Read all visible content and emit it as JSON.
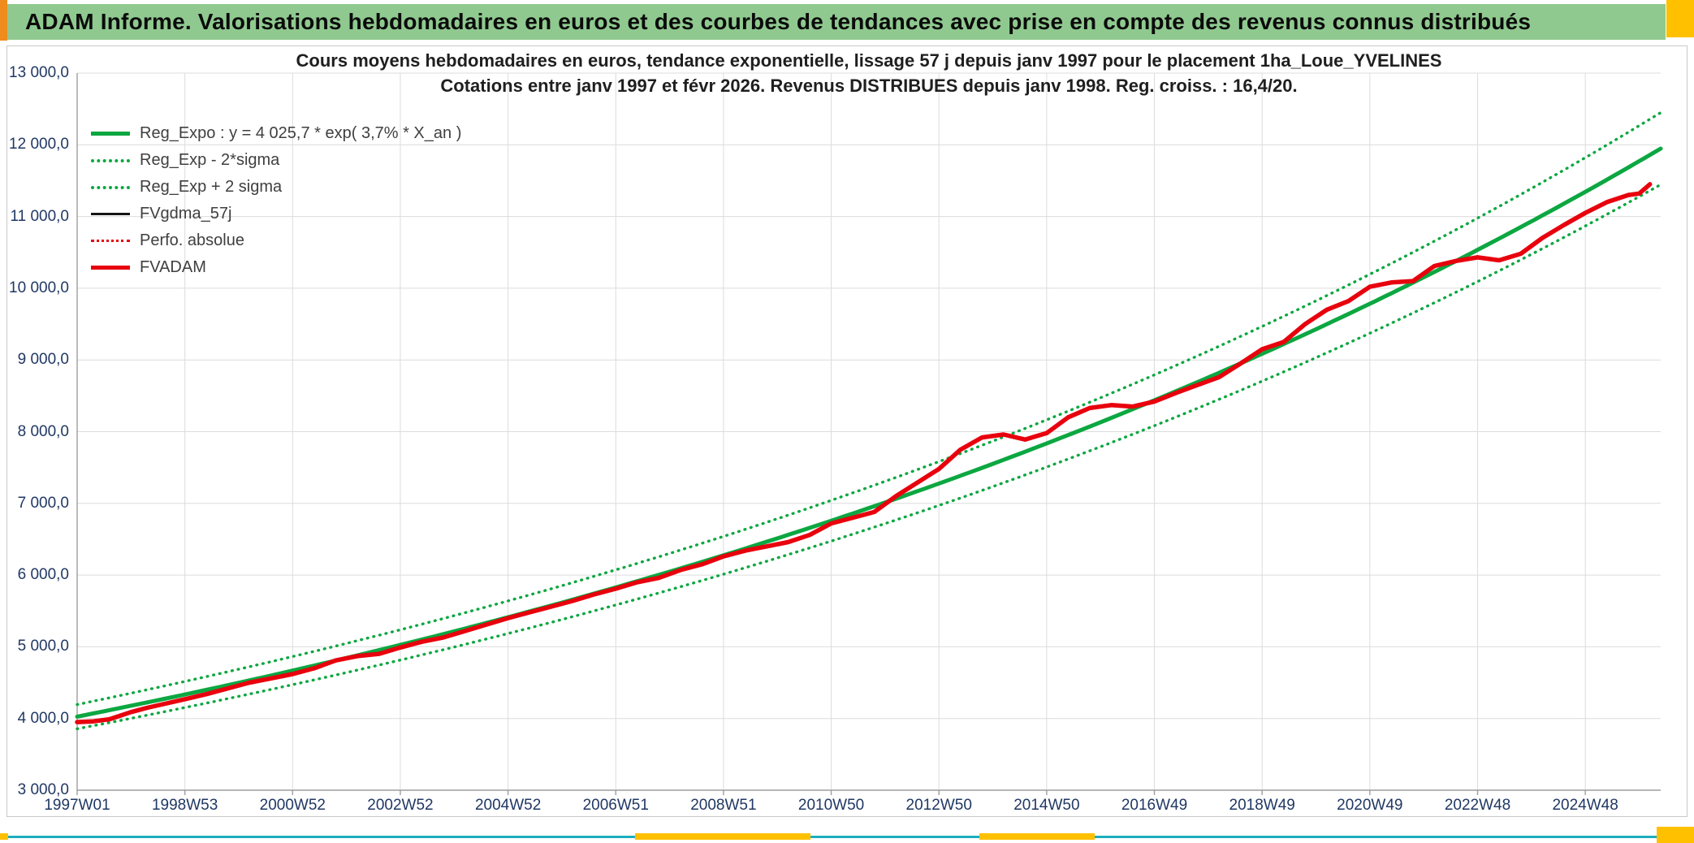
{
  "header": {
    "title": "ADAM Informe. Valorisations hebdomadaires en euros et des courbes de tendances avec prise en compte des revenus connus distribués"
  },
  "chart_data": {
    "type": "line",
    "title_line1": "Cours moyens hebdomadaires en euros, tendance exponentielle, lissage 57 j depuis janv 1997 pour le placement 1ha_Loue_YVELINES",
    "title_line2": "Cotations entre janv 1997 et févr 2026. Revenus DISTRIBUES depuis janv 1998. Reg. croiss. : 16,4/20.",
    "ylim": [
      3000,
      13000
    ],
    "y_tick_values": [
      13000,
      12000,
      11000,
      10000,
      9000,
      8000,
      7000,
      6000,
      5000,
      4000,
      3000
    ],
    "y_tick_labels": [
      "13 000,0",
      "12 000,0",
      "11 000,0",
      "10 000,0",
      "9 000,0",
      "8 000,0",
      "7 000,0",
      "6 000,0",
      "5 000,0",
      "4 000,0",
      "3 000,0"
    ],
    "x_tick_years": [
      0,
      2,
      4,
      6,
      8,
      10,
      12,
      14,
      16,
      18,
      20,
      22,
      24,
      26,
      28
    ],
    "x_tick_labels": [
      "1997W01",
      "1998W53",
      "2000W52",
      "2002W52",
      "2004W52",
      "2006W51",
      "2008W51",
      "2010W50",
      "2012W50",
      "2014W50",
      "2016W49",
      "2018W49",
      "2020W49",
      "2022W48",
      "2024W48"
    ],
    "x_range_years": [
      0,
      29.4
    ],
    "grid": true,
    "legend_position": "top-left-inside",
    "regression": {
      "a": 4025.7,
      "rate_pct_per_year": 3.7,
      "label": "Reg_Expo : y = 4 025,7 * exp( 3,7% * X_an )"
    },
    "sigma_band_pct": 4.2,
    "legend": [
      {
        "label": "Reg_Expo : y = 4 025,7 * exp( 3,7% * X_an )",
        "color": "#0CA741",
        "style": "thick"
      },
      {
        "label": "Reg_Exp - 2*sigma",
        "color": "#0CA741",
        "style": "dots"
      },
      {
        "label": "Reg_Exp + 2 sigma",
        "color": "#0CA741",
        "style": "dots"
      },
      {
        "label": "FVgdma_57j",
        "color": "#141414",
        "style": "thin"
      },
      {
        "label": "Perfo. absolue",
        "color": "#E8000D",
        "style": "thin-dots"
      },
      {
        "label": "FVADAM",
        "color": "#E8000D",
        "style": "thick"
      }
    ],
    "series": {
      "fvadam": {
        "name": "FVADAM",
        "color": "#E8000D",
        "points": [
          [
            0.0,
            3950
          ],
          [
            0.3,
            3960
          ],
          [
            0.6,
            3990
          ],
          [
            1.0,
            4090
          ],
          [
            1.3,
            4150
          ],
          [
            1.6,
            4200
          ],
          [
            2.0,
            4270
          ],
          [
            2.4,
            4340
          ],
          [
            2.8,
            4420
          ],
          [
            3.2,
            4500
          ],
          [
            3.6,
            4560
          ],
          [
            4.0,
            4620
          ],
          [
            4.4,
            4700
          ],
          [
            4.8,
            4810
          ],
          [
            5.2,
            4870
          ],
          [
            5.6,
            4900
          ],
          [
            6.0,
            4990
          ],
          [
            6.4,
            5070
          ],
          [
            6.8,
            5130
          ],
          [
            7.2,
            5220
          ],
          [
            7.6,
            5310
          ],
          [
            8.0,
            5400
          ],
          [
            8.4,
            5480
          ],
          [
            8.8,
            5560
          ],
          [
            9.2,
            5640
          ],
          [
            9.6,
            5730
          ],
          [
            10.0,
            5810
          ],
          [
            10.4,
            5900
          ],
          [
            10.8,
            5960
          ],
          [
            11.2,
            6070
          ],
          [
            11.6,
            6150
          ],
          [
            12.0,
            6260
          ],
          [
            12.4,
            6340
          ],
          [
            12.8,
            6400
          ],
          [
            13.2,
            6460
          ],
          [
            13.6,
            6560
          ],
          [
            14.0,
            6720
          ],
          [
            14.4,
            6800
          ],
          [
            14.8,
            6880
          ],
          [
            15.2,
            7100
          ],
          [
            15.6,
            7290
          ],
          [
            16.0,
            7480
          ],
          [
            16.4,
            7750
          ],
          [
            16.8,
            7920
          ],
          [
            17.2,
            7960
          ],
          [
            17.6,
            7890
          ],
          [
            18.0,
            7980
          ],
          [
            18.4,
            8200
          ],
          [
            18.8,
            8330
          ],
          [
            19.2,
            8370
          ],
          [
            19.6,
            8350
          ],
          [
            20.0,
            8420
          ],
          [
            20.4,
            8540
          ],
          [
            20.8,
            8650
          ],
          [
            21.2,
            8760
          ],
          [
            21.6,
            8950
          ],
          [
            22.0,
            9150
          ],
          [
            22.4,
            9250
          ],
          [
            22.8,
            9500
          ],
          [
            23.2,
            9700
          ],
          [
            23.6,
            9820
          ],
          [
            24.0,
            10020
          ],
          [
            24.4,
            10080
          ],
          [
            24.8,
            10100
          ],
          [
            25.2,
            10310
          ],
          [
            25.6,
            10380
          ],
          [
            26.0,
            10430
          ],
          [
            26.4,
            10390
          ],
          [
            26.8,
            10480
          ],
          [
            27.2,
            10700
          ],
          [
            27.6,
            10880
          ],
          [
            28.0,
            11050
          ],
          [
            28.4,
            11200
          ],
          [
            28.8,
            11300
          ],
          [
            29.0,
            11320
          ],
          [
            29.2,
            11450
          ]
        ]
      },
      "fvgdma_57j": {
        "name": "FVgdma_57j",
        "color": "#141414",
        "note": "coincides with FVADAM at this scale"
      },
      "perfo_absolue": {
        "name": "Perfo. absolue",
        "color": "#E8000D",
        "note": "coincides with FVADAM at this scale"
      }
    },
    "colors": {
      "green": "#0CA741",
      "red": "#E8000D",
      "black": "#141414",
      "grid": "#DCDCDC",
      "axis": "#9E9E9E",
      "title_text": "#1F1F1F",
      "axis_text": "#203864",
      "legend_text": "#3F3F3F",
      "header_bg": "#8FC98F",
      "header_text": "#0B0B0B",
      "teal_accent": "#1BAEBE",
      "yellow_accent": "#FFC000",
      "orange_accent": "#F08C1E"
    }
  }
}
